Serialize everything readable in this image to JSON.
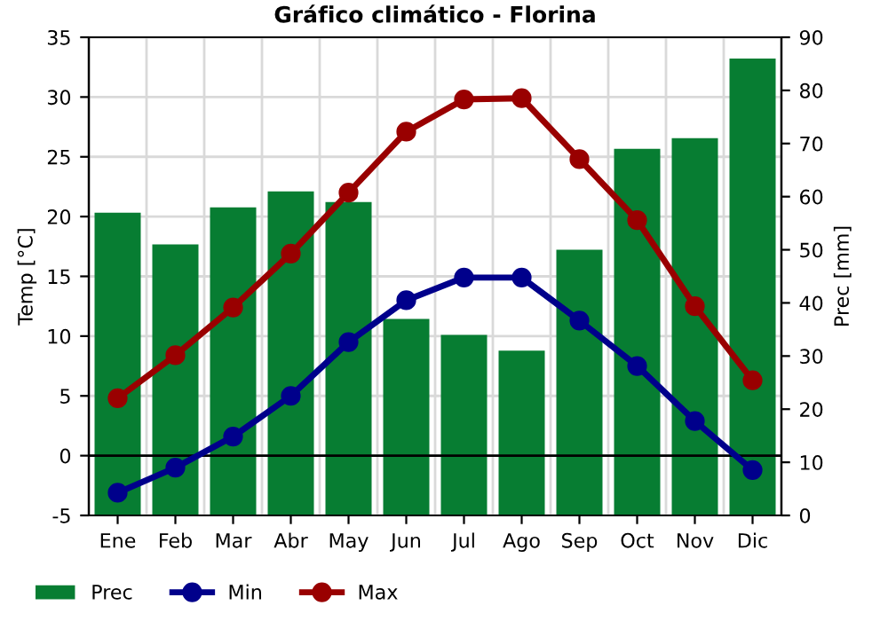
{
  "chart_data": {
    "type": "line",
    "title": "Gráfico climático - Florina",
    "categories": [
      "Ene",
      "Feb",
      "Mar",
      "Abr",
      "May",
      "Jun",
      "Jul",
      "Ago",
      "Sep",
      "Oct",
      "Nov",
      "Dic"
    ],
    "series": [
      {
        "name": "Prec",
        "type": "bar",
        "axis": "y2",
        "color": "#077d32",
        "values": [
          57,
          51,
          58,
          61,
          59,
          37,
          34,
          31,
          50,
          69,
          71,
          86
        ]
      },
      {
        "name": "Min",
        "color": "#00008b",
        "values": [
          -3.1,
          -1,
          1.6,
          5,
          9.5,
          13,
          14.9,
          14.9,
          11.3,
          7.5,
          2.9,
          -1.2
        ]
      },
      {
        "name": "Max",
        "color": "#990000",
        "values": [
          4.8,
          8.4,
          12.4,
          16.9,
          22,
          27.1,
          29.8,
          29.9,
          24.8,
          19.7,
          12.5,
          6.3
        ]
      }
    ],
    "ylabel": "Temp [°C]",
    "y2label": "Prec [mm]",
    "ylim": [
      -5,
      35
    ],
    "yticks": [
      -5,
      0,
      5,
      10,
      15,
      20,
      25,
      30,
      35
    ],
    "y2lim": [
      0,
      90
    ],
    "y2ticks": [
      0,
      10,
      20,
      30,
      40,
      50,
      60,
      70,
      80,
      90
    ],
    "ref_lines": [
      {
        "axis": "y",
        "value": 0,
        "color": "#000000"
      }
    ],
    "grid": true,
    "legend": "bottom",
    "marker": "circle",
    "line_style": "solid"
  }
}
